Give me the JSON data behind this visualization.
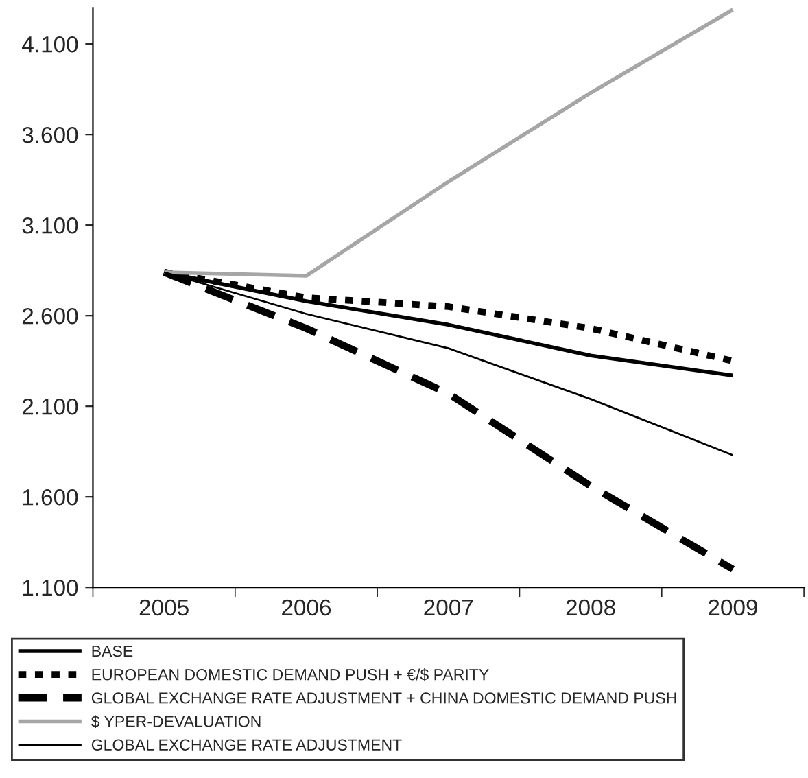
{
  "chart_data": {
    "type": "line",
    "categories": [
      "2005",
      "2006",
      "2007",
      "2008",
      "2009"
    ],
    "ylim": [
      1.1,
      4.3
    ],
    "yticks": [
      {
        "value": 1.1,
        "label": "1.100"
      },
      {
        "value": 1.6,
        "label": "1.600"
      },
      {
        "value": 2.1,
        "label": "2.100"
      },
      {
        "value": 2.6,
        "label": "2.600"
      },
      {
        "value": 3.1,
        "label": "3.100"
      },
      {
        "value": 3.6,
        "label": "3.600"
      },
      {
        "value": 4.1,
        "label": "4.100"
      }
    ],
    "grid": false,
    "legend": "bottom",
    "series": [
      {
        "name": "BASE",
        "color": "#000000",
        "line_style": "solid",
        "values": [
          2.84,
          2.68,
          2.55,
          2.38,
          2.27
        ]
      },
      {
        "name": "EUROPEAN DOMESTIC DEMAND PUSH + €/$ PARITY",
        "color": "#000000",
        "line_style": "dotted",
        "values": [
          2.84,
          2.7,
          2.65,
          2.53,
          2.35
        ]
      },
      {
        "name": "GLOBAL EXCHANGE RATE ADJUSTMENT + CHINA DOMESTIC DEMAND PUSH",
        "color": "#000000",
        "line_style": "dashed",
        "values": [
          2.84,
          2.53,
          2.17,
          1.66,
          1.2
        ]
      },
      {
        "name": "$ YPER-DEVALUATION",
        "color": "#a6a6a6",
        "line_style": "solid",
        "values": [
          2.84,
          2.82,
          3.34,
          3.83,
          4.29
        ]
      },
      {
        "name": "GLOBAL EXCHANGE RATE ADJUSTMENT",
        "color": "#000000",
        "line_style": "solid",
        "values": [
          2.84,
          2.61,
          2.42,
          2.14,
          1.83
        ]
      }
    ]
  }
}
